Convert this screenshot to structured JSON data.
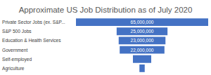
{
  "chart_data": {
    "type": "funnel",
    "title": "Approximate US Job Distribution as of July 2020",
    "categories": [
      "Private Sector Jobs (ex. S&P...",
      "S&P 500 Jobs",
      "Education & Health Services",
      "Government",
      "Self-employed",
      "Agriculture"
    ],
    "values": [
      65000000,
      25000000,
      23000000,
      22000000,
      9000000,
      2600000
    ],
    "value_labels": [
      "65,000,000",
      "25,000,000",
      "23,000,000",
      "22,000,000",
      null,
      null
    ],
    "color": "#4472c4",
    "orientation": "horizontal",
    "data_labels": true,
    "tick_labels": "y",
    "grid": false
  }
}
